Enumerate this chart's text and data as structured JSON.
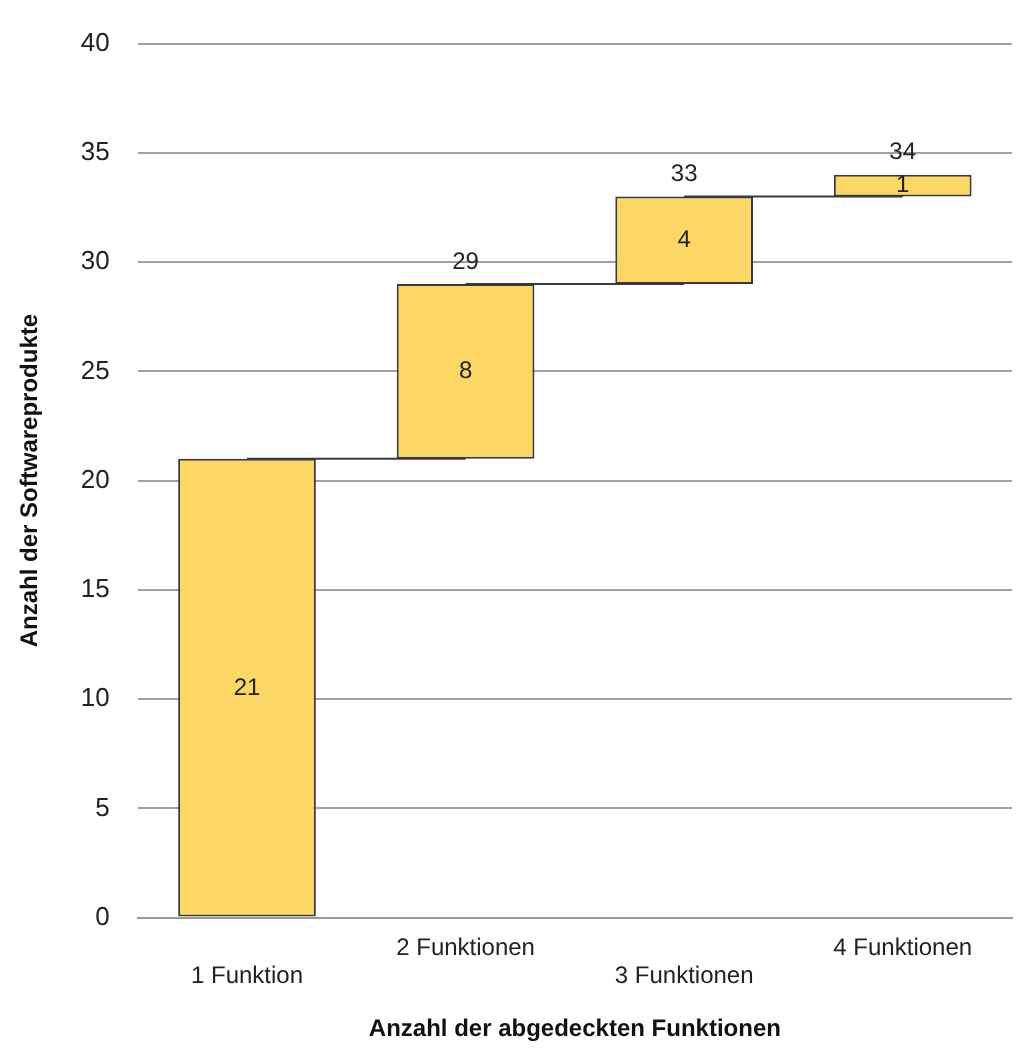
{
  "chart_data": {
    "type": "bar",
    "xlabel": "Anzahl der abgedeckten Funktionen",
    "ylabel": "Anzahl der Softwareprodukte",
    "categories": [
      "1 Funktion",
      "2 Funktionen",
      "3 Funktionen",
      "4 Funktionen"
    ],
    "values": [
      21,
      8,
      4,
      1
    ],
    "base": [
      0,
      21,
      29,
      33
    ],
    "color": "#fdd766",
    "value_labels": [
      "21",
      "8",
      "4",
      "1"
    ],
    "series": [
      {
        "type": "line",
        "color": "#3a3a3a",
        "values": [
          21,
          21,
          null,
          null
        ]
      },
      {
        "type": "line",
        "color": "#3a3a3a",
        "values": [
          null,
          29,
          29,
          null
        ]
      },
      {
        "type": "line",
        "color": "#3a3a3a",
        "values": [
          null,
          null,
          33,
          33
        ]
      }
    ],
    "annotations": [
      {
        "text": "29",
        "x": "2 Funktionen",
        "y": 29
      },
      {
        "text": "33",
        "x": "3 Funktionen",
        "y": 33
      },
      {
        "text": "34",
        "x": "4 Funktionen",
        "y": 34
      }
    ],
    "ylim": [
      0,
      40
    ],
    "yticks": [
      0,
      5,
      10,
      15,
      20,
      25,
      30,
      35,
      40
    ],
    "grid": "y",
    "legend": false
  }
}
